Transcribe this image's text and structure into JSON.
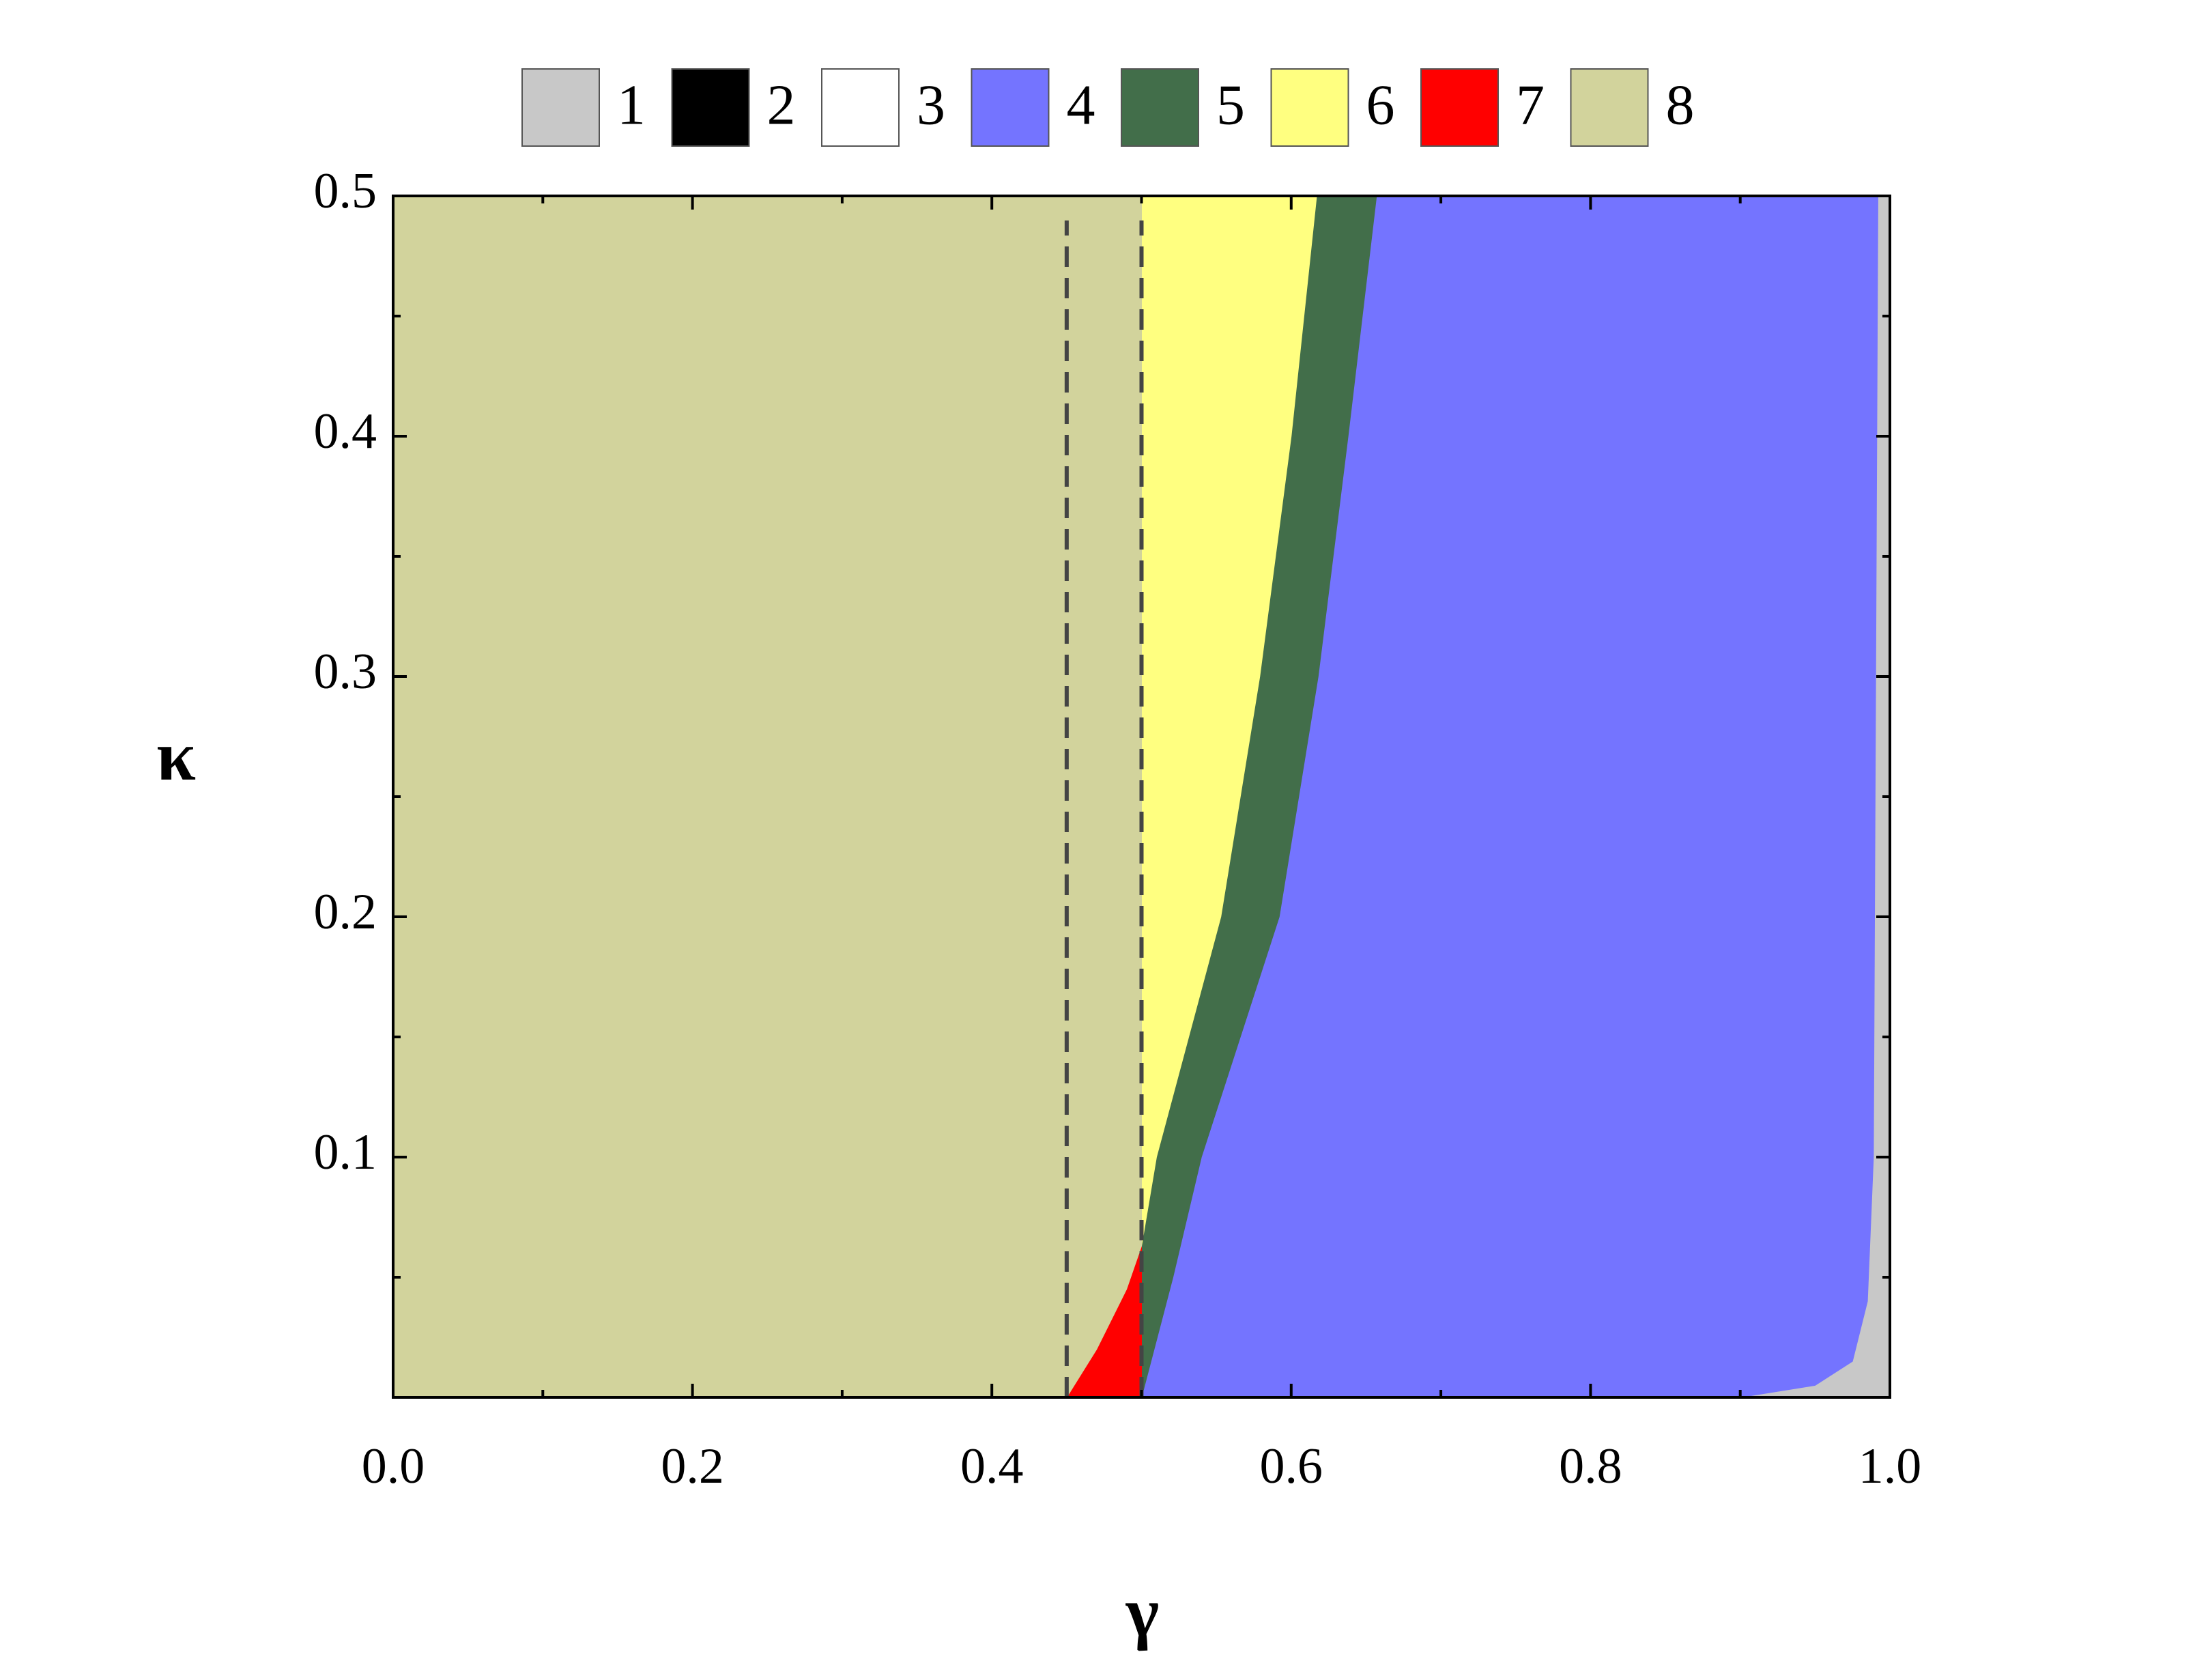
{
  "chart_data": {
    "type": "region",
    "x_label": "γ",
    "y_label": "κ",
    "xlim": [
      0,
      1
    ],
    "ylim": [
      0,
      0.5
    ],
    "xticks": [
      {
        "value": 0,
        "label": "0.0"
      },
      0.2,
      0.4,
      0.6,
      0.8,
      {
        "value": 1,
        "label": "1.0"
      }
    ],
    "yticks": [
      0.1,
      0.2,
      0.3,
      0.4,
      0.5
    ],
    "xminorticks": [
      0.1,
      0.3,
      0.5,
      0.7,
      0.9
    ],
    "yminorticks": [
      0.05,
      0.15,
      0.25,
      0.35,
      0.45
    ],
    "vlines": [
      0.45,
      0.5
    ],
    "series": [
      {
        "name": "1",
        "color": "#c8c8c8",
        "x": [
          0.9,
          0.95,
          0.975,
          0.985,
          0.989,
          0.992,
          1,
          1
        ],
        "values": [
          0,
          0.005,
          0.015,
          0.04,
          0.1,
          0.5,
          0.5,
          0
        ]
      },
      {
        "name": "2",
        "color": "#000000"
      },
      {
        "name": "3",
        "color": "#ffffff"
      },
      {
        "name": "4",
        "color": "#7474ff",
        "x": [
          0.5,
          0.521,
          0.54,
          0.592,
          0.618,
          0.638,
          0.657,
          0.992,
          0.989,
          0.985,
          0.975,
          0.95,
          0.9
        ],
        "values": [
          0,
          0.05,
          0.1,
          0.2,
          0.3,
          0.4,
          0.5,
          0.5,
          0.1,
          0.04,
          0.015,
          0.005,
          0
        ]
      },
      {
        "name": "5",
        "color": "#426e4a",
        "x": [
          0.5,
          0.5,
          0.51,
          0.553,
          0.579,
          0.6,
          0.617,
          0.657,
          0.638,
          0.618,
          0.592,
          0.54,
          0.521
        ],
        "values": [
          0,
          0.063,
          0.1,
          0.2,
          0.3,
          0.4,
          0.5,
          0.5,
          0.4,
          0.3,
          0.2,
          0.1,
          0.05
        ]
      },
      {
        "name": "6",
        "color": "#ffff80",
        "x": [
          0.5,
          0.5,
          0.617,
          0.6,
          0.579,
          0.553,
          0.51
        ],
        "values": [
          0.063,
          0.5,
          0.5,
          0.4,
          0.3,
          0.2,
          0.1
        ]
      },
      {
        "name": "7",
        "color": "#ff0000",
        "x": [
          0.45,
          0.47,
          0.49,
          0.5,
          0.5
        ],
        "values": [
          0,
          0.02,
          0.045,
          0.063,
          0
        ]
      },
      {
        "name": "8",
        "color": "#d2d39c",
        "x": [
          0,
          0,
          0.5,
          0.5,
          0.49,
          0.47,
          0.45
        ],
        "values": [
          0,
          0.5,
          0.5,
          0.063,
          0.045,
          0.02,
          0
        ]
      }
    ]
  }
}
